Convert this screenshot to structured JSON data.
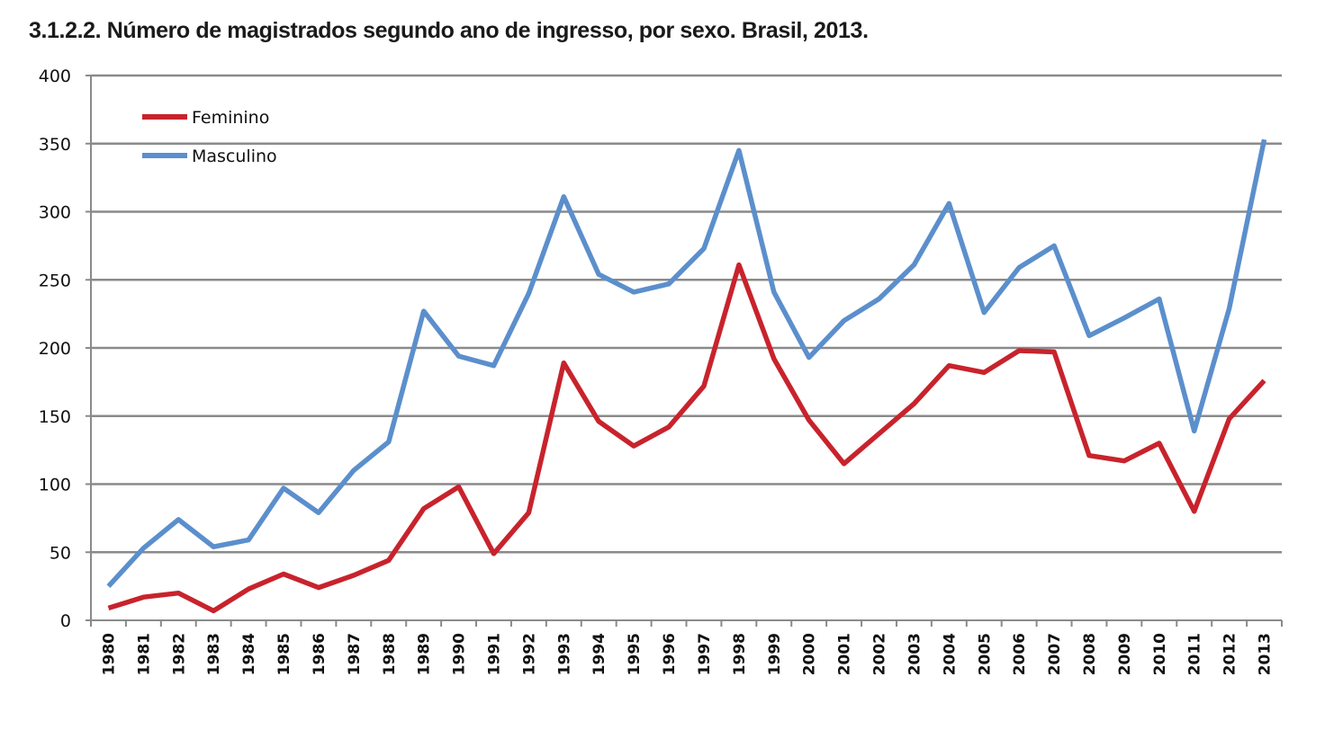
{
  "chart_data": {
    "type": "line",
    "title": "3.1.2.2. Número de magistrados segundo ano de ingresso, por sexo. Brasil, 2013.",
    "xlabel": "",
    "ylabel": "",
    "ylim": [
      0,
      400
    ],
    "yticks": [
      0,
      50,
      100,
      150,
      200,
      250,
      300,
      350,
      400
    ],
    "grid": true,
    "legend_position": "top-left",
    "categories": [
      "1980",
      "1981",
      "1982",
      "1983",
      "1984",
      "1985",
      "1986",
      "1987",
      "1988",
      "1989",
      "1990",
      "1991",
      "1992",
      "1993",
      "1994",
      "1995",
      "1996",
      "1997",
      "1998",
      "1999",
      "2000",
      "2001",
      "2002",
      "2003",
      "2004",
      "2005",
      "2006",
      "2007",
      "2008",
      "2009",
      "2010",
      "2011",
      "2012",
      "2013"
    ],
    "series": [
      {
        "name": "Feminino",
        "color": "#c8232c",
        "values": [
          9,
          17,
          20,
          7,
          23,
          34,
          24,
          33,
          44,
          82,
          98,
          49,
          79,
          189,
          146,
          128,
          142,
          172,
          261,
          192,
          147,
          115,
          137,
          159,
          187,
          182,
          198,
          197,
          121,
          117,
          130,
          80,
          148,
          176
        ]
      },
      {
        "name": "Masculino",
        "color": "#5b8fcc",
        "values": [
          25,
          53,
          74,
          54,
          59,
          97,
          79,
          110,
          131,
          227,
          194,
          187,
          240,
          311,
          254,
          241,
          247,
          273,
          345,
          241,
          193,
          220,
          236,
          261,
          306,
          226,
          259,
          275,
          209,
          222,
          236,
          139,
          229,
          353
        ]
      }
    ]
  }
}
